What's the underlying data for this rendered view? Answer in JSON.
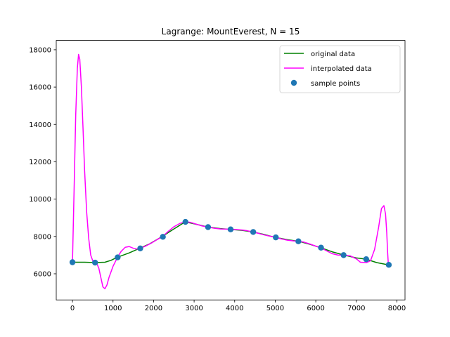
{
  "chart_data": {
    "type": "line",
    "title": "Lagrange: MountEverest, N = 15",
    "xlabel": "",
    "ylabel": "",
    "xlim": [
      -400,
      8200
    ],
    "ylim": [
      4600,
      18500
    ],
    "x_ticks": [
      0,
      1000,
      2000,
      3000,
      4000,
      5000,
      6000,
      7000,
      8000
    ],
    "y_ticks": [
      6000,
      8000,
      10000,
      12000,
      14000,
      16000,
      18000
    ],
    "grid": false,
    "legend_position": "top-right",
    "series": [
      {
        "name": "original data",
        "type": "line",
        "color": "#008000",
        "x": [
          0,
          300,
          550,
          800,
          950,
          1100,
          1400,
          1650,
          1900,
          2200,
          2500,
          2780,
          3000,
          3350,
          3650,
          3900,
          4200,
          4450,
          4700,
          5000,
          5300,
          5580,
          5850,
          6120,
          6400,
          6700,
          7000,
          7250,
          7500,
          7790
        ],
        "y": [
          6620,
          6620,
          6600,
          6620,
          6720,
          6880,
          7120,
          7360,
          7600,
          7980,
          8400,
          8780,
          8680,
          8500,
          8420,
          8380,
          8320,
          8240,
          8120,
          7950,
          7830,
          7740,
          7580,
          7400,
          7180,
          7000,
          6850,
          6780,
          6600,
          6480
        ]
      },
      {
        "name": "interpolated data",
        "type": "line",
        "color": "#ff00ff",
        "x": [
          0,
          40,
          80,
          120,
          150,
          180,
          220,
          260,
          300,
          350,
          400,
          450,
          500,
          550,
          600,
          650,
          700,
          750,
          800,
          850,
          900,
          1000,
          1110,
          1200,
          1300,
          1400,
          1500,
          1600,
          1670,
          1800,
          1950,
          2100,
          2210,
          2350,
          2500,
          2650,
          2780,
          2900,
          3050,
          3200,
          3350,
          3500,
          3650,
          3800,
          3900,
          4050,
          4200,
          4300,
          4450,
          4600,
          4750,
          4900,
          5020,
          5150,
          5300,
          5450,
          5580,
          5700,
          5850,
          6000,
          6120,
          6250,
          6400,
          6550,
          6700,
          6850,
          7000,
          7100,
          7250,
          7350,
          7450,
          7550,
          7620,
          7680,
          7720,
          7750,
          7770,
          7790
        ],
        "y": [
          6620,
          10500,
          14500,
          17000,
          17750,
          17500,
          16000,
          13800,
          11500,
          9300,
          7900,
          7000,
          6700,
          6600,
          6550,
          6300,
          5800,
          5300,
          5200,
          5400,
          5800,
          6400,
          6880,
          7200,
          7420,
          7460,
          7370,
          7320,
          7360,
          7480,
          7650,
          7850,
          7980,
          8250,
          8520,
          8700,
          8780,
          8760,
          8660,
          8560,
          8500,
          8440,
          8400,
          8390,
          8380,
          8370,
          8340,
          8310,
          8240,
          8160,
          8070,
          8000,
          7950,
          7870,
          7800,
          7760,
          7740,
          7700,
          7600,
          7480,
          7400,
          7250,
          7080,
          7000,
          7000,
          6960,
          6800,
          6620,
          6600,
          6700,
          7300,
          8500,
          9500,
          9650,
          9200,
          8200,
          7200,
          6480
        ]
      },
      {
        "name": "sample points",
        "type": "scatter",
        "color": "#1f77b4",
        "x": [
          0,
          557,
          1114,
          1671,
          2229,
          2786,
          3343,
          3900,
          4457,
          5014,
          5571,
          6129,
          6686,
          7243,
          7800
        ],
        "y": [
          6620,
          6600,
          6880,
          7360,
          7980,
          8780,
          8500,
          8380,
          8240,
          7950,
          7740,
          7400,
          7000,
          6780,
          6480
        ]
      }
    ]
  }
}
